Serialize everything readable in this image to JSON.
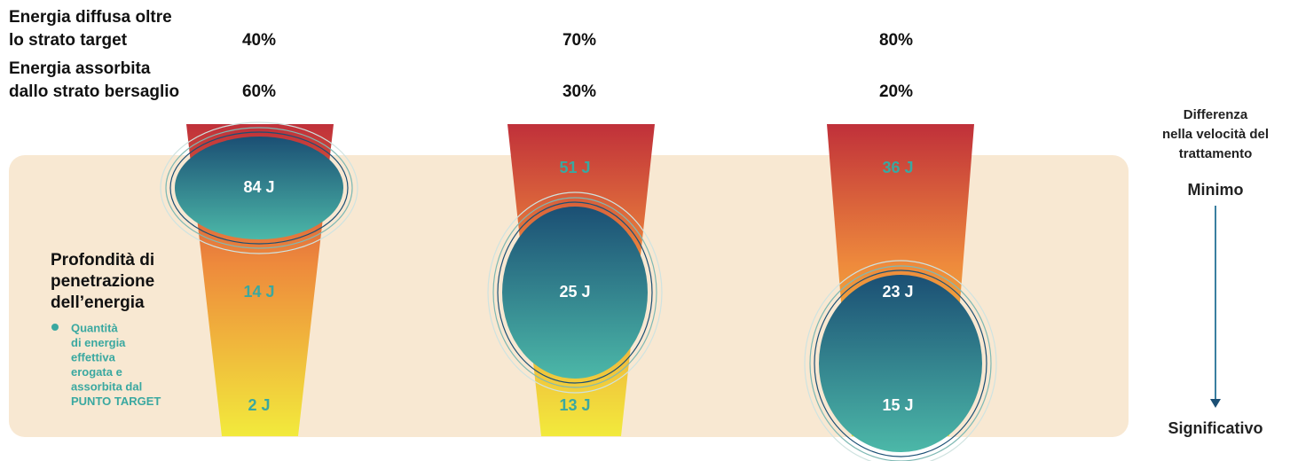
{
  "rows": [
    {
      "label": [
        "Energia diffusa oltre",
        "lo strato target"
      ]
    },
    {
      "label": [
        "Energia assorbita",
        "dallo strato bersaglio"
      ]
    }
  ],
  "columns": [
    {
      "diffused": "40%",
      "absorbed": "60%",
      "energies": [
        "84 J",
        "14 J",
        "2 J"
      ]
    },
    {
      "diffused": "70%",
      "absorbed": "30%",
      "energies": [
        "51 J",
        "25 J",
        "13 J"
      ]
    },
    {
      "diffused": "80%",
      "absorbed": "20%",
      "energies": [
        "36 J",
        "23 J",
        "15 J"
      ]
    }
  ],
  "legend": {
    "title": [
      "Profondità di",
      "penetrazione",
      "dell’energia"
    ],
    "text": [
      "Quantità",
      "di energia",
      "effettiva",
      "erogata e",
      "assorbita dal",
      "PUNTO TARGET"
    ]
  },
  "side": {
    "title": [
      "Differenza",
      "nella velocità del",
      "trattamento"
    ],
    "top": "Minimo",
    "bottom": "Significativo"
  }
}
